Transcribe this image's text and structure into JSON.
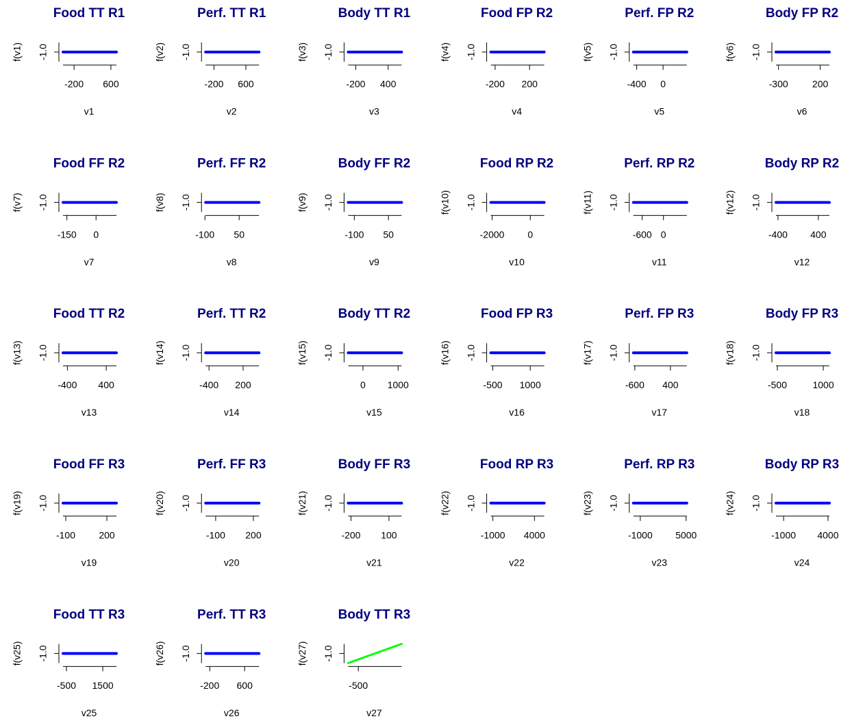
{
  "chart_data": [
    {
      "type": "line",
      "title": "Food TT R1",
      "xlabel": "v1",
      "ylabel": "f(v1)",
      "xlim": [
        -440,
        720
      ],
      "xticks": [
        -200,
        600
      ],
      "ylim": [
        -1.5,
        -0.5
      ],
      "yticks": [
        {
          "value": -1,
          "label": "-1.0"
        }
      ],
      "x": [
        -440,
        720
      ],
      "values": [
        -1,
        -1
      ],
      "color": "#0000ff"
    },
    {
      "type": "line",
      "title": "Perf. TT R1",
      "xlabel": "v2",
      "ylabel": "f(v2)",
      "xlim": [
        -410,
        930
      ],
      "xticks": [
        -200,
        600
      ],
      "ylim": [
        -1.5,
        -0.5
      ],
      "yticks": [
        {
          "value": -1,
          "label": "-1.0"
        }
      ],
      "x": [
        -410,
        930
      ],
      "values": [
        -1,
        -1
      ],
      "color": "#0000ff"
    },
    {
      "type": "line",
      "title": "Body TT R1",
      "xlabel": "v3",
      "ylabel": "f(v3)",
      "xlim": [
        -340,
        650
      ],
      "xticks": [
        -200,
        400
      ],
      "ylim": [
        -1.5,
        -0.5
      ],
      "yticks": [
        {
          "value": -1,
          "label": "-1.0"
        }
      ],
      "x": [
        -340,
        650
      ],
      "values": [
        -1,
        -1
      ],
      "color": "#0000ff"
    },
    {
      "type": "line",
      "title": "Food FP R2",
      "xlabel": "v4",
      "ylabel": "f(v4)",
      "xlim": [
        -250,
        370
      ],
      "xticks": [
        -200,
        200
      ],
      "ylim": [
        -1.5,
        -0.5
      ],
      "yticks": [
        {
          "value": -1,
          "label": "-1.0"
        }
      ],
      "x": [
        -250,
        370
      ],
      "values": [
        -1,
        -1
      ],
      "color": "#0000ff"
    },
    {
      "type": "line",
      "title": "Perf. FP R2",
      "xlabel": "v5",
      "ylabel": "f(v5)",
      "xlim": [
        -450,
        360
      ],
      "xticks": [
        -400,
        0
      ],
      "ylim": [
        -1.5,
        -0.5
      ],
      "yticks": [
        {
          "value": -1,
          "label": "-1.0"
        }
      ],
      "x": [
        -450,
        360
      ],
      "values": [
        -1,
        -1
      ],
      "color": "#0000ff"
    },
    {
      "type": "line",
      "title": "Body FP R2",
      "xlabel": "v6",
      "ylabel": "f(v6)",
      "xlim": [
        -330,
        310
      ],
      "xticks": [
        -300,
        200
      ],
      "ylim": [
        -1.5,
        -0.5
      ],
      "yticks": [
        {
          "value": -1,
          "label": "-1.0"
        }
      ],
      "x": [
        -330,
        310
      ],
      "values": [
        -1,
        -1
      ],
      "color": "#0000ff"
    },
    {
      "type": "line",
      "title": "Food FF R2",
      "xlabel": "v7",
      "ylabel": "f(v7)",
      "xlim": [
        -170,
        105
      ],
      "xticks": [
        -150,
        0
      ],
      "ylim": [
        -1.5,
        -0.5
      ],
      "yticks": [
        {
          "value": -1,
          "label": "-1.0"
        }
      ],
      "x": [
        -170,
        105
      ],
      "values": [
        -1,
        -1
      ],
      "color": "#0000ff"
    },
    {
      "type": "line",
      "title": "Perf. FF R2",
      "xlabel": "v8",
      "ylabel": "f(v8)",
      "xlim": [
        -97,
        137
      ],
      "xticks": [
        -100,
        50
      ],
      "ylim": [
        -1.5,
        -0.5
      ],
      "yticks": [
        {
          "value": -1,
          "label": "-1.0"
        }
      ],
      "x": [
        -97,
        137
      ],
      "values": [
        -1,
        -1
      ],
      "color": "#0000ff"
    },
    {
      "type": "line",
      "title": "Body FF R2",
      "xlabel": "v9",
      "ylabel": "f(v9)",
      "xlim": [
        -127,
        108
      ],
      "xticks": [
        -100,
        50
      ],
      "ylim": [
        -1.5,
        -0.5
      ],
      "yticks": [
        {
          "value": -1,
          "label": "-1.0"
        }
      ],
      "x": [
        -127,
        108
      ],
      "values": [
        -1,
        -1
      ],
      "color": "#0000ff"
    },
    {
      "type": "line",
      "title": "Food RP R2",
      "xlabel": "v10",
      "ylabel": "f(v10)",
      "xlim": [
        -2070,
        730
      ],
      "xticks": [
        -2000,
        0
      ],
      "ylim": [
        -1.5,
        -0.5
      ],
      "yticks": [
        {
          "value": -1,
          "label": "-1.0"
        }
      ],
      "x": [
        -2070,
        730
      ],
      "values": [
        -1,
        -1
      ],
      "color": "#0000ff"
    },
    {
      "type": "line",
      "title": "Perf. RP R2",
      "xlabel": "v11",
      "ylabel": "f(v11)",
      "xlim": [
        -850,
        660
      ],
      "xticks": [
        -600,
        0
      ],
      "ylim": [
        -1.5,
        -0.5
      ],
      "yticks": [
        {
          "value": -1,
          "label": "-1.0"
        }
      ],
      "x": [
        -850,
        660
      ],
      "values": [
        -1,
        -1
      ],
      "color": "#0000ff"
    },
    {
      "type": "line",
      "title": "Body RP R2",
      "xlabel": "v12",
      "ylabel": "f(v12)",
      "xlim": [
        -440,
        620
      ],
      "xticks": [
        -400,
        400
      ],
      "ylim": [
        -1.5,
        -0.5
      ],
      "yticks": [
        {
          "value": -1,
          "label": "-1.0"
        }
      ],
      "x": [
        -440,
        620
      ],
      "values": [
        -1,
        -1
      ],
      "color": "#0000ff"
    },
    {
      "type": "line",
      "title": "Food TT R2",
      "xlabel": "v13",
      "ylabel": "f(v13)",
      "xlim": [
        -490,
        610
      ],
      "xticks": [
        -400,
        400
      ],
      "ylim": [
        -1.5,
        -0.5
      ],
      "yticks": [
        {
          "value": -1,
          "label": "-1.0"
        }
      ],
      "x": [
        -490,
        610
      ],
      "values": [
        -1,
        -1
      ],
      "color": "#0000ff"
    },
    {
      "type": "line",
      "title": "Perf. TT R2",
      "xlabel": "v14",
      "ylabel": "f(v14)",
      "xlim": [
        -460,
        480
      ],
      "xticks": [
        -400,
        200
      ],
      "ylim": [
        -1.5,
        -0.5
      ],
      "yticks": [
        {
          "value": -1,
          "label": "-1.0"
        }
      ],
      "x": [
        -460,
        480
      ],
      "values": [
        -1,
        -1
      ],
      "color": "#0000ff"
    },
    {
      "type": "line",
      "title": "Body TT R2",
      "xlabel": "v15",
      "ylabel": "f(v15)",
      "xlim": [
        -420,
        1100
      ],
      "xticks": [
        0,
        1000
      ],
      "ylim": [
        -1.5,
        -0.5
      ],
      "yticks": [
        {
          "value": -1,
          "label": "-1.0"
        }
      ],
      "x": [
        -420,
        1100
      ],
      "values": [
        -1,
        -1
      ],
      "color": "#0000ff"
    },
    {
      "type": "line",
      "title": "Food FP R3",
      "xlabel": "v16",
      "ylabel": "f(v16)",
      "xlim": [
        -580,
        1560
      ],
      "xticks": [
        -500,
        1000
      ],
      "ylim": [
        -1.5,
        -0.5
      ],
      "yticks": [
        {
          "value": -1,
          "label": "-1.0"
        }
      ],
      "x": [
        -580,
        1560
      ],
      "values": [
        -1,
        -1
      ],
      "color": "#0000ff"
    },
    {
      "type": "line",
      "title": "Perf. FP R3",
      "xlabel": "v17",
      "ylabel": "f(v17)",
      "xlim": [
        -640,
        860
      ],
      "xticks": [
        -600,
        400
      ],
      "ylim": [
        -1.5,
        -0.5
      ],
      "yticks": [
        {
          "value": -1,
          "label": "-1.0"
        }
      ],
      "x": [
        -640,
        860
      ],
      "values": [
        -1,
        -1
      ],
      "color": "#0000ff"
    },
    {
      "type": "line",
      "title": "Body FP R3",
      "xlabel": "v18",
      "ylabel": "f(v18)",
      "xlim": [
        -545,
        1200
      ],
      "xticks": [
        -500,
        1000
      ],
      "ylim": [
        -1.5,
        -0.5
      ],
      "yticks": [
        {
          "value": -1,
          "label": "-1.0"
        }
      ],
      "x": [
        -545,
        1200
      ],
      "values": [
        -1,
        -1
      ],
      "color": "#0000ff"
    },
    {
      "type": "line",
      "title": "Food FF R3",
      "xlabel": "v19",
      "ylabel": "f(v19)",
      "xlim": [
        -120,
        270
      ],
      "xticks": [
        -100,
        200
      ],
      "ylim": [
        -1.5,
        -0.5
      ],
      "yticks": [
        {
          "value": -1,
          "label": "-1.0"
        }
      ],
      "x": [
        -120,
        270
      ],
      "values": [
        -1,
        -1
      ],
      "color": "#0000ff"
    },
    {
      "type": "line",
      "title": "Perf. FF R3",
      "xlabel": "v20",
      "ylabel": "f(v20)",
      "xlim": [
        -180,
        245
      ],
      "xticks": [
        -100,
        200
      ],
      "ylim": [
        -1.5,
        -0.5
      ],
      "yticks": [
        {
          "value": -1,
          "label": "-1.0"
        }
      ],
      "x": [
        -180,
        245
      ],
      "values": [
        -1,
        -1
      ],
      "color": "#0000ff"
    },
    {
      "type": "line",
      "title": "Body FF R3",
      "xlabel": "v21",
      "ylabel": "f(v21)",
      "xlim": [
        -222,
        200
      ],
      "xticks": [
        -200,
        100
      ],
      "ylim": [
        -1.5,
        -0.5
      ],
      "yticks": [
        {
          "value": -1,
          "label": "-1.0"
        }
      ],
      "x": [
        -222,
        200
      ],
      "values": [
        -1,
        -1
      ],
      "color": "#0000ff"
    },
    {
      "type": "line",
      "title": "Food RP R3",
      "xlabel": "v22",
      "ylabel": "f(v22)",
      "xlim": [
        -1250,
        5170
      ],
      "xticks": [
        -1000,
        4000
      ],
      "ylim": [
        -1.5,
        -0.5
      ],
      "yticks": [
        {
          "value": -1,
          "label": "-1.0"
        }
      ],
      "x": [
        -1250,
        5170
      ],
      "values": [
        -1,
        -1
      ],
      "color": "#0000ff"
    },
    {
      "type": "line",
      "title": "Perf. RP R3",
      "xlabel": "v23",
      "ylabel": "f(v23)",
      "xlim": [
        -1900,
        5090
      ],
      "xticks": [
        -1000,
        5000
      ],
      "ylim": [
        -1.5,
        -0.5
      ],
      "yticks": [
        {
          "value": -1,
          "label": "-1.0"
        }
      ],
      "x": [
        -1900,
        5090
      ],
      "values": [
        -1,
        -1
      ],
      "color": "#0000ff"
    },
    {
      "type": "line",
      "title": "Body RP R3",
      "xlabel": "v24",
      "ylabel": "f(v24)",
      "xlim": [
        -1860,
        4160
      ],
      "xticks": [
        -1000,
        4000
      ],
      "ylim": [
        -1.5,
        -0.5
      ],
      "yticks": [
        {
          "value": -1,
          "label": "-1.0"
        }
      ],
      "x": [
        -1860,
        4160
      ],
      "values": [
        -1,
        -1
      ],
      "color": "#0000ff"
    },
    {
      "type": "line",
      "title": "Food TT R3",
      "xlabel": "v25",
      "ylabel": "f(v25)",
      "xlim": [
        -690,
        2250
      ],
      "xticks": [
        -500,
        1500
      ],
      "ylim": [
        -1.5,
        -0.5
      ],
      "yticks": [
        {
          "value": -1,
          "label": "-1.0"
        }
      ],
      "x": [
        -690,
        2250
      ],
      "values": [
        -1,
        -1
      ],
      "color": "#0000ff"
    },
    {
      "type": "line",
      "title": "Perf. TT R3",
      "xlabel": "v26",
      "ylabel": "f(v26)",
      "xlim": [
        -295,
        930
      ],
      "xticks": [
        -200,
        600
      ],
      "ylim": [
        -1.5,
        -0.5
      ],
      "yticks": [
        {
          "value": -1,
          "label": "-1.0"
        }
      ],
      "x": [
        -295,
        930
      ],
      "values": [
        -1,
        -1
      ],
      "color": "#0000ff"
    },
    {
      "type": "line",
      "title": "Body TT R3",
      "xlabel": "v27",
      "ylabel": "f(v27)",
      "xlim": [
        -720,
        440
      ],
      "xticks": [
        -500
      ],
      "ylim": [
        -1.5,
        -0.5
      ],
      "yticks": [
        {
          "value": -1,
          "label": "-1.0"
        }
      ],
      "x": [
        -720,
        440
      ],
      "values": [
        -1.5,
        -0.5
      ],
      "color": "#00ff00"
    }
  ]
}
